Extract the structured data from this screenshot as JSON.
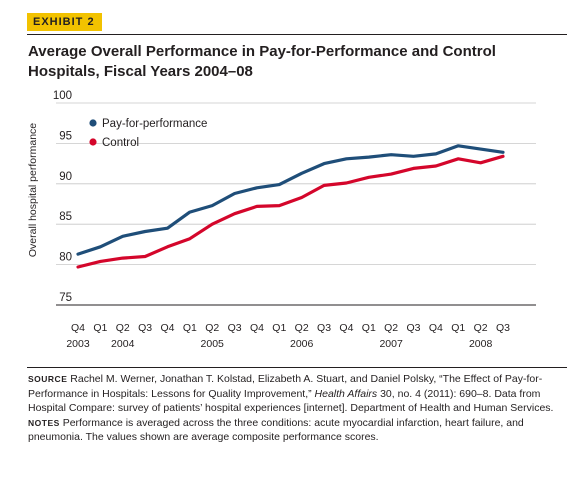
{
  "exhibit_label": "EXHIBIT 2",
  "title": "Average Overall Performance in Pay-for-Performance and Control Hospitals, Fiscal Years 2004–08",
  "chart_data": {
    "type": "line",
    "title": "Average Overall Performance in Pay-for-Performance and Control Hospitals, Fiscal Years 2004–08",
    "xlabel": "",
    "ylabel": "Overall hospital performance",
    "ylim": [
      75,
      100
    ],
    "yticks": [
      75,
      80,
      85,
      90,
      95,
      100
    ],
    "grid": "horizontal",
    "legend_position": "top-left",
    "categories": [
      "Q4",
      "Q1",
      "Q2",
      "Q3",
      "Q4",
      "Q1",
      "Q2",
      "Q3",
      "Q4",
      "Q1",
      "Q2",
      "Q3",
      "Q4",
      "Q1",
      "Q2",
      "Q3",
      "Q4",
      "Q1",
      "Q2",
      "Q3"
    ],
    "year_labels": [
      {
        "label": "2003",
        "index": 0
      },
      {
        "label": "2004",
        "index": 2
      },
      {
        "label": "2005",
        "index": 6
      },
      {
        "label": "2006",
        "index": 10
      },
      {
        "label": "2007",
        "index": 14
      },
      {
        "label": "2008",
        "index": 18
      }
    ],
    "series": [
      {
        "name": "Pay-for-performance",
        "color": "#1f4e79",
        "values": [
          81.3,
          82.2,
          83.5,
          84.1,
          84.5,
          86.5,
          87.3,
          88.8,
          89.5,
          89.9,
          91.3,
          92.5,
          93.1,
          93.3,
          93.6,
          93.4,
          93.7,
          94.7,
          94.3,
          93.9
        ]
      },
      {
        "name": "Control",
        "color": "#d4062b",
        "values": [
          79.7,
          80.4,
          80.8,
          81.0,
          82.2,
          83.2,
          85.0,
          86.3,
          87.2,
          87.3,
          88.3,
          89.8,
          90.1,
          90.8,
          91.2,
          91.9,
          92.2,
          93.1,
          92.6,
          93.4
        ]
      }
    ]
  },
  "notes": {
    "source_lead": "Source",
    "source_text_1": " Rachel M. Werner, Jonathan T. Kolstad, Elizabeth A. Stuart, and Daniel Polsky, “The Effect of Pay-for-Performance in Hospitals: Lessons for Quality Improvement,” ",
    "source_journal": "Health Affairs",
    "source_text_2": " 30, no. 4 (2011): 690–8. Data from Hospital Compare: survey of patients’ hospital experiences [internet]. Department of Health and Human Services. ",
    "notes_lead": "Notes",
    "notes_text": " Performance is averaged across the three conditions: acute myocardial infarction, heart failure, and pneumonia. The values shown are average composite performance scores."
  }
}
